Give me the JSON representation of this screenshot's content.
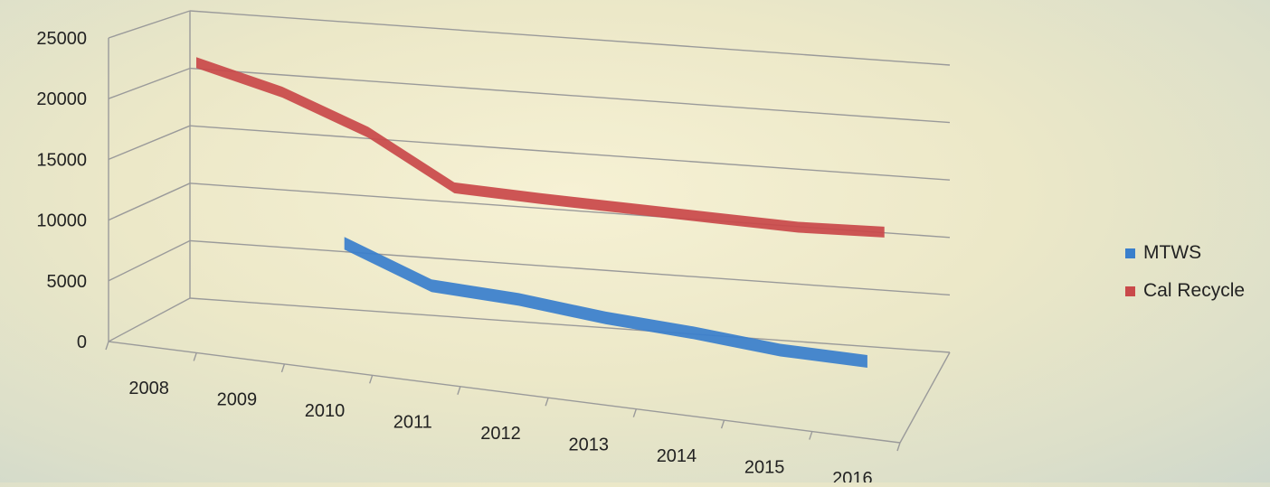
{
  "chart_data": {
    "type": "line",
    "title": "",
    "xlabel": "",
    "ylabel": "",
    "ylim": [
      0,
      25000
    ],
    "y_ticks": [
      "25000",
      "20000",
      "15000",
      "10000",
      "5000",
      "0"
    ],
    "categories": [
      "2008",
      "2009",
      "2010",
      "2011",
      "2012",
      "2013",
      "2014",
      "2015",
      "2016"
    ],
    "grid": true,
    "legend_position": "right",
    "series": [
      {
        "name": "MTWS",
        "color": "#3a7fcc",
        "values": [
          null,
          null,
          9500,
          6800,
          6500,
          5800,
          5400,
          4800,
          4700
        ]
      },
      {
        "name": "Cal Recycle",
        "color": "#c9494a",
        "values": [
          22000,
          20200,
          17500,
          13500,
          13300,
          13200,
          13100,
          13000,
          13300
        ]
      }
    ]
  }
}
